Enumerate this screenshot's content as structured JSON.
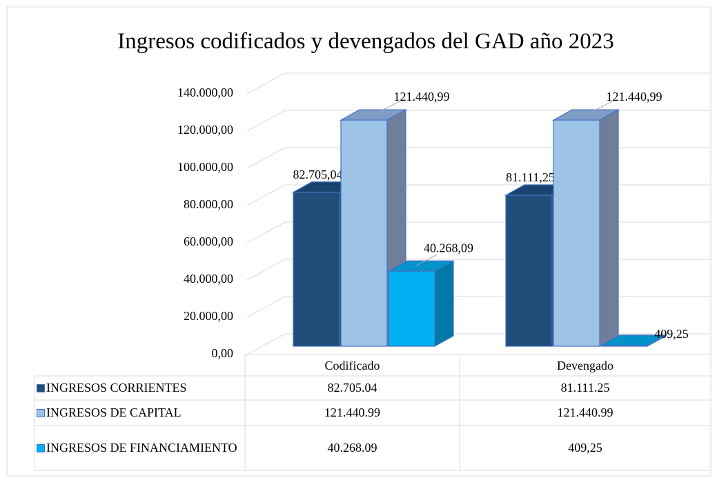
{
  "chart_data": {
    "type": "bar3d",
    "title": "Ingresos codificados y devengados del GAD año 2023",
    "categories": [
      "Codificado",
      "Devengado"
    ],
    "series": [
      {
        "name": "INGRESOS CORRIENTES",
        "color": "#1f4e79",
        "side_color": "#173a5a",
        "top_color": "#1a4470",
        "values": [
          82705.04,
          81111.25
        ],
        "value_labels": [
          "82.705,04",
          "81.111,25"
        ],
        "table_labels": [
          "82.705.04",
          "81.111.25"
        ]
      },
      {
        "name": "INGRESOS DE CAPITAL",
        "color": "#9dc3e6",
        "side_color": "#6f7f99",
        "top_color": "#7f9cc4",
        "values": [
          121440.99,
          121440.99
        ],
        "value_labels": [
          "121.440,99",
          "121.440,99"
        ],
        "table_labels": [
          "121.440.99",
          "121.440.99"
        ]
      },
      {
        "name": "INGRESOS DE FINANCIAMIENTO",
        "color": "#00b0f0",
        "side_color": "#0079a8",
        "top_color": "#0092c8",
        "values": [
          40268.09,
          409.25
        ],
        "value_labels": [
          "40.268,09",
          "409,25"
        ],
        "table_labels": [
          "40.268.09",
          "409,25"
        ]
      }
    ],
    "ylim": [
      0,
      140000
    ],
    "yticks": [
      {
        "value": 0,
        "label": "0,00"
      },
      {
        "value": 20000,
        "label": "20.000,00"
      },
      {
        "value": 40000,
        "label": "40.000,00"
      },
      {
        "value": 60000,
        "label": "60.000,00"
      },
      {
        "value": 80000,
        "label": "80.000,00"
      },
      {
        "value": 100000,
        "label": "100.000,00"
      },
      {
        "value": 120000,
        "label": "120.000,00"
      },
      {
        "value": 140000,
        "label": "140.000,00"
      }
    ],
    "grid": true
  }
}
